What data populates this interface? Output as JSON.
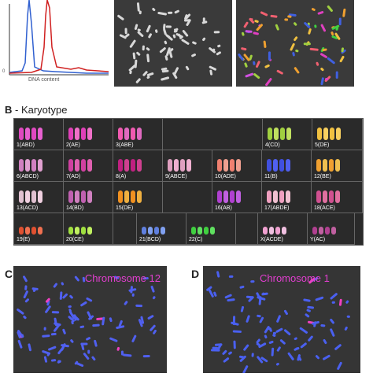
{
  "panelA": {
    "xlabel": "DNA content",
    "ytick_zero": "0"
  },
  "panelB": {
    "letter": "B",
    "title": "- Karyotype",
    "cells": [
      {
        "label": "1(ABD)",
        "colors": [
          "#e048c0",
          "#e860d0"
        ]
      },
      {
        "label": "2(AE)",
        "colors": [
          "#e040b8",
          "#f070c8"
        ]
      },
      {
        "label": "3(ABE)",
        "colors": [
          "#f05ab0",
          "#e06ac0"
        ]
      },
      {
        "label": "4(CD)",
        "colors": [
          "#a0d040",
          "#c0e060"
        ]
      },
      {
        "label": "5(DE)",
        "colors": [
          "#f0c040",
          "#f8d060"
        ]
      },
      {
        "label": "6(ABCD)",
        "colors": [
          "#d080c0",
          "#e0a0d0"
        ]
      },
      {
        "label": "7(AD)",
        "colors": [
          "#d040a0",
          "#e060b0"
        ]
      },
      {
        "label": "8(A)",
        "colors": [
          "#c02080",
          "#d04090"
        ]
      },
      {
        "label": "9(ABCE)",
        "colors": [
          "#e0a0c0",
          "#f0b0d0"
        ]
      },
      {
        "label": "10(ADE)",
        "colors": [
          "#f08070",
          "#f0a090"
        ]
      },
      {
        "label": "11(B)",
        "colors": [
          "#4050e0",
          "#5060f0"
        ]
      },
      {
        "label": "12(BE)",
        "colors": [
          "#f0a030",
          "#f0c050"
        ]
      },
      {
        "label": "13(ACD)",
        "colors": [
          "#e0c0d0",
          "#f0d0e0"
        ]
      },
      {
        "label": "14(BD)",
        "colors": [
          "#c060b0",
          "#d080c0"
        ]
      },
      {
        "label": "15(DE)",
        "colors": [
          "#f09020",
          "#f0b040"
        ]
      },
      {
        "label": "16(AB)",
        "colors": [
          "#b040d0",
          "#c060e0"
        ]
      },
      {
        "label": "17(ABDE)",
        "colors": [
          "#f0a0c0",
          "#f0c0d0"
        ]
      },
      {
        "label": "18(ACE)",
        "colors": [
          "#d05090",
          "#e070a0"
        ]
      },
      {
        "label": "19(E)",
        "colors": [
          "#e05030",
          "#f07050"
        ]
      },
      {
        "label": "20(CE)",
        "colors": [
          "#a0e040",
          "#c0f060"
        ]
      },
      {
        "label": "21(BCD)",
        "colors": [
          "#6080e0",
          "#80a0f0"
        ]
      },
      {
        "label": "22(C)",
        "colors": [
          "#40d040",
          "#60e060"
        ]
      },
      {
        "label": "X(ACDE)",
        "colors": [
          "#f0a0d0",
          "#f0c0e0"
        ]
      },
      {
        "label": "Y(AC)",
        "colors": [
          "#b04090",
          "#c060a0"
        ]
      }
    ]
  },
  "panelC": {
    "letter": "C",
    "title": "Chromosome 12"
  },
  "panelD": {
    "letter": "D",
    "title": "Chromosome 1"
  }
}
